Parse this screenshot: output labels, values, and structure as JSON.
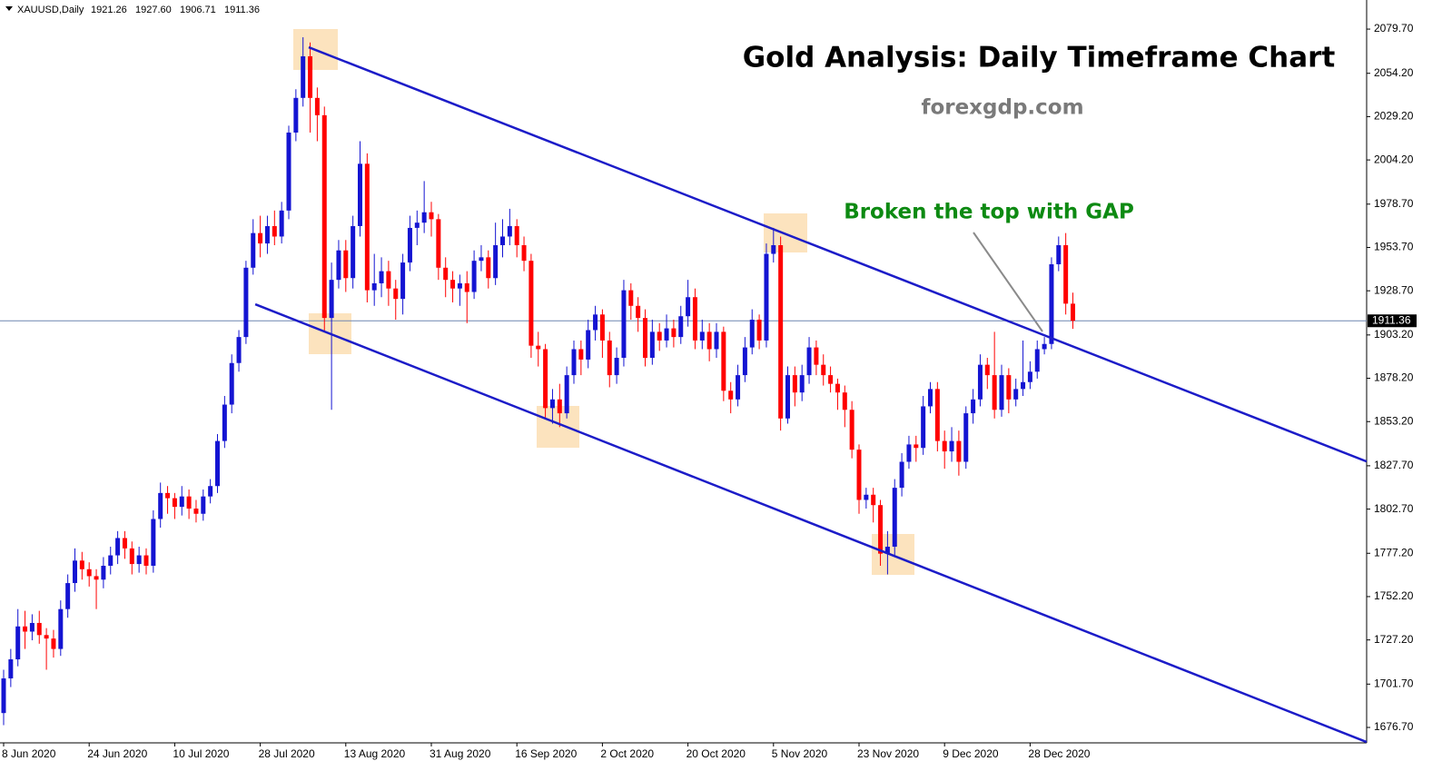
{
  "chart_data": {
    "type": "candlestick",
    "header": {
      "symbol": "XAUUSD,Daily",
      "ohlc_labels": [
        "1921.26",
        "1927.60",
        "1906.71",
        "1911.36"
      ]
    },
    "title": "Gold Analysis: Daily Timeframe Chart",
    "subtitle": "forexgdp.com",
    "annotation": "Broken the top with GAP",
    "up_color": "#1414d2",
    "down_color": "#ff0000",
    "categories": [
      "8 Jun 2020",
      null,
      null,
      null,
      null,
      null,
      null,
      null,
      null,
      null,
      null,
      null,
      "24 Jun 2020",
      null,
      null,
      null,
      null,
      null,
      null,
      null,
      null,
      null,
      null,
      null,
      "10 Jul 2020",
      null,
      null,
      null,
      null,
      null,
      null,
      null,
      null,
      null,
      null,
      null,
      "28 Jul 2020",
      null,
      null,
      null,
      null,
      null,
      null,
      null,
      null,
      null,
      null,
      null,
      "13 Aug 2020",
      null,
      null,
      null,
      null,
      null,
      null,
      null,
      null,
      null,
      null,
      null,
      "31 Aug 2020",
      null,
      null,
      null,
      null,
      null,
      null,
      null,
      null,
      null,
      null,
      null,
      "16 Sep 2020",
      null,
      null,
      null,
      null,
      null,
      null,
      null,
      null,
      null,
      null,
      null,
      "2 Oct 2020",
      null,
      null,
      null,
      null,
      null,
      null,
      null,
      null,
      null,
      null,
      null,
      "20 Oct 2020",
      null,
      null,
      null,
      null,
      null,
      null,
      null,
      null,
      null,
      null,
      null,
      "5 Nov 2020",
      null,
      null,
      null,
      null,
      null,
      null,
      null,
      null,
      null,
      null,
      null,
      "23 Nov 2020",
      null,
      null,
      null,
      null,
      null,
      null,
      null,
      null,
      null,
      null,
      null,
      "9 Dec 2020",
      null,
      null,
      null,
      null,
      null,
      null,
      null,
      null,
      null,
      null,
      null,
      "28 Dec 2020",
      null,
      null,
      null,
      null,
      null,
      null
    ],
    "ohlc": {
      "open": [
        1685,
        1705,
        1716,
        1735,
        1732,
        1737,
        1730,
        1728,
        1722,
        1745,
        1760,
        1773,
        1768,
        1764,
        1762,
        1770,
        1776,
        1786,
        1780,
        1771,
        1776,
        1770,
        1797,
        1812,
        1809,
        1804,
        1810,
        1803,
        1800,
        1810,
        1816,
        1842,
        1863,
        1887,
        1902,
        1942,
        1962,
        1956,
        1966,
        1960,
        1975,
        2020,
        2040,
        2064,
        2040,
        2030,
        1913,
        1935,
        1952,
        1936,
        1966,
        2002,
        1929,
        1933,
        1940,
        1930,
        1924,
        1945,
        1965,
        1968,
        1974,
        1970,
        1942,
        1935,
        1930,
        1933,
        1928,
        1946,
        1948,
        1936,
        1955,
        1960,
        1966,
        1955,
        1946,
        1897,
        1895,
        1861,
        1866,
        1858,
        1880,
        1895,
        1889,
        1906,
        1915,
        1900,
        1880,
        1890,
        1929,
        1920,
        1913,
        1890,
        1905,
        1900,
        1907,
        1902,
        1914,
        1925,
        1900,
        1905,
        1895,
        1905,
        1871,
        1866,
        1880,
        1896,
        1912,
        1900,
        1950,
        1955,
        1855,
        1880,
        1870,
        1880,
        1896,
        1886,
        1880,
        1875,
        1870,
        1860,
        1837,
        1808,
        1811,
        1805,
        1777,
        1781,
        1815,
        1830,
        1840,
        1838,
        1862,
        1872,
        1842,
        1836,
        1842,
        1830,
        1858,
        1866,
        1886,
        1880,
        1860,
        1880,
        1866,
        1872,
        1876,
        1882,
        1895,
        1898,
        1944,
        1955,
        1921.26
      ],
      "high": [
        1710,
        1722,
        1745,
        1744,
        1742,
        1744,
        1734,
        1733,
        1750,
        1765,
        1780,
        1778,
        1772,
        1768,
        1775,
        1781,
        1790,
        1790,
        1784,
        1781,
        1780,
        1802,
        1818,
        1816,
        1812,
        1816,
        1814,
        1808,
        1814,
        1820,
        1846,
        1868,
        1892,
        1906,
        1946,
        1970,
        1972,
        1972,
        1975,
        1980,
        2024,
        2045,
        2075,
        2072,
        2046,
        2035,
        1945,
        1958,
        1958,
        1972,
        2015,
        2008,
        1950,
        1948,
        1946,
        1935,
        1950,
        1972,
        1975,
        1992,
        1980,
        1973,
        1948,
        1940,
        1938,
        1940,
        1952,
        1955,
        1952,
        1968,
        1970,
        1976,
        1970,
        1960,
        1950,
        1905,
        1898,
        1872,
        1875,
        1885,
        1900,
        1900,
        1912,
        1920,
        1918,
        1905,
        1896,
        1935,
        1933,
        1925,
        1918,
        1912,
        1910,
        1915,
        1912,
        1920,
        1935,
        1930,
        1912,
        1910,
        1910,
        1908,
        1876,
        1886,
        1902,
        1918,
        1915,
        1956,
        1965,
        1960,
        1885,
        1885,
        1886,
        1902,
        1900,
        1892,
        1885,
        1878,
        1874,
        1865,
        1840,
        1815,
        1815,
        1808,
        1790,
        1820,
        1835,
        1845,
        1845,
        1868,
        1876,
        1876,
        1848,
        1850,
        1848,
        1862,
        1872,
        1892,
        1890,
        1905,
        1886,
        1884,
        1878,
        1900,
        1888,
        1900,
        1902,
        1948,
        1960,
        1962,
        1927.6
      ],
      "low": [
        1678,
        1700,
        1712,
        1722,
        1727,
        1725,
        1710,
        1717,
        1718,
        1740,
        1755,
        1762,
        1758,
        1745,
        1757,
        1765,
        1771,
        1774,
        1765,
        1766,
        1765,
        1766,
        1792,
        1800,
        1797,
        1799,
        1797,
        1795,
        1796,
        1806,
        1812,
        1838,
        1858,
        1882,
        1898,
        1938,
        1948,
        1950,
        1955,
        1956,
        1970,
        2015,
        2035,
        2020,
        2015,
        1905,
        1860,
        1930,
        1928,
        1930,
        1960,
        1922,
        1920,
        1925,
        1920,
        1912,
        1915,
        1940,
        1955,
        1962,
        1960,
        1935,
        1925,
        1922,
        1920,
        1910,
        1924,
        1940,
        1930,
        1932,
        1948,
        1955,
        1948,
        1940,
        1890,
        1885,
        1855,
        1852,
        1850,
        1855,
        1875,
        1880,
        1884,
        1900,
        1890,
        1873,
        1875,
        1885,
        1912,
        1905,
        1885,
        1886,
        1894,
        1896,
        1896,
        1898,
        1908,
        1895,
        1895,
        1888,
        1890,
        1865,
        1858,
        1862,
        1876,
        1892,
        1895,
        1896,
        1945,
        1848,
        1852,
        1862,
        1865,
        1875,
        1880,
        1874,
        1870,
        1860,
        1850,
        1832,
        1800,
        1803,
        1795,
        1770,
        1765,
        1776,
        1810,
        1826,
        1830,
        1834,
        1858,
        1836,
        1826,
        1830,
        1822,
        1826,
        1852,
        1862,
        1872,
        1855,
        1856,
        1858,
        1862,
        1868,
        1872,
        1878,
        1892,
        1895,
        1940,
        1915,
        1906.71
      ],
      "close": [
        1705,
        1716,
        1735,
        1732,
        1737,
        1730,
        1728,
        1722,
        1745,
        1760,
        1773,
        1768,
        1764,
        1762,
        1770,
        1776,
        1786,
        1780,
        1771,
        1776,
        1770,
        1797,
        1812,
        1809,
        1804,
        1810,
        1803,
        1800,
        1810,
        1816,
        1842,
        1863,
        1887,
        1902,
        1942,
        1962,
        1956,
        1966,
        1960,
        1975,
        2020,
        2040,
        2064,
        2040,
        2030,
        1913,
        1935,
        1952,
        1936,
        1966,
        2002,
        1929,
        1933,
        1940,
        1930,
        1924,
        1945,
        1965,
        1968,
        1974,
        1970,
        1942,
        1935,
        1930,
        1933,
        1928,
        1946,
        1948,
        1936,
        1955,
        1960,
        1966,
        1955,
        1946,
        1897,
        1895,
        1861,
        1866,
        1858,
        1880,
        1895,
        1889,
        1906,
        1915,
        1900,
        1880,
        1890,
        1929,
        1920,
        1913,
        1890,
        1905,
        1900,
        1907,
        1902,
        1914,
        1925,
        1900,
        1905,
        1895,
        1905,
        1871,
        1866,
        1880,
        1896,
        1912,
        1900,
        1950,
        1955,
        1855,
        1880,
        1870,
        1880,
        1896,
        1886,
        1880,
        1875,
        1870,
        1860,
        1837,
        1808,
        1811,
        1805,
        1777,
        1781,
        1815,
        1830,
        1840,
        1838,
        1862,
        1872,
        1842,
        1836,
        1842,
        1830,
        1858,
        1866,
        1886,
        1880,
        1860,
        1880,
        1866,
        1872,
        1876,
        1882,
        1895,
        1898,
        1944,
        1955,
        1921.26,
        1911.36
      ]
    },
    "channel": [
      {
        "x": [
          42.8,
          191.2
        ],
        "y": [
          2069.2,
          1830.2
        ]
      },
      {
        "x": [
          35.3,
          191.2
        ],
        "y": [
          1920.9,
          1668.3
        ]
      }
    ],
    "channel_color": "#1c1cc8",
    "current_price": {
      "value": 1911.36,
      "label": "1911.36"
    },
    "ylim": [
      1667.8,
      2096.5
    ],
    "yticks": [
      {
        "value": 2079.7,
        "label": "2079.70"
      },
      {
        "value": 2054.2,
        "label": "2054.20"
      },
      {
        "value": 2029.2,
        "label": "2029.20"
      },
      {
        "value": 2004.2,
        "label": "2004.20"
      },
      {
        "value": 1978.7,
        "label": "1978.70"
      },
      {
        "value": 1953.7,
        "label": "1953.70"
      },
      {
        "value": 1928.7,
        "label": "1928.70"
      },
      {
        "value": 1903.2,
        "label": "1903.20"
      },
      {
        "value": 1878.2,
        "label": "1878.20"
      },
      {
        "value": 1853.2,
        "label": "1853.20"
      },
      {
        "value": 1827.7,
        "label": "1827.70"
      },
      {
        "value": 1802.7,
        "label": "1802.70"
      },
      {
        "value": 1777.2,
        "label": "1777.20"
      },
      {
        "value": 1752.2,
        "label": "1752.20"
      },
      {
        "value": 1727.2,
        "label": "1727.20"
      },
      {
        "value": 1701.7,
        "label": "1701.70"
      },
      {
        "value": 1676.7,
        "label": "1676.70"
      }
    ]
  }
}
